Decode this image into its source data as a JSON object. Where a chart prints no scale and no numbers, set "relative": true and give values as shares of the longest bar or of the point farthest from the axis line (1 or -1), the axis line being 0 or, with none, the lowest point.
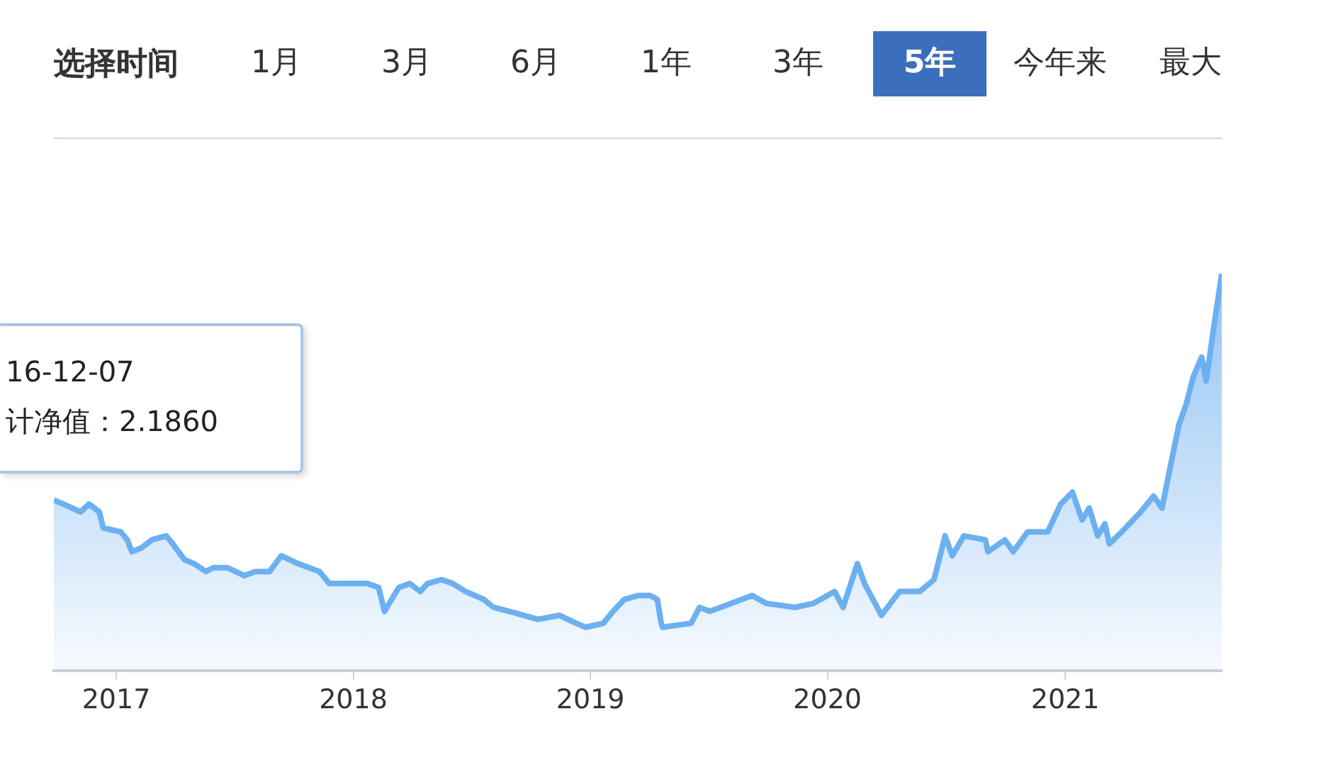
{
  "chart_data": {
    "type": "area",
    "relative": true,
    "annotations": [
      "选择时间",
      "1月",
      "3月",
      "6月",
      "1年",
      "3年",
      "5年",
      "今年来",
      "最大",
      "16-12-07",
      "计净值：2.1860"
    ],
    "x": [
      "2016-09-27",
      "2016-10-12",
      "2016-11-07",
      "2016-11-20",
      "2016-12-06",
      "2016-12-12",
      "2017-01-08",
      "2017-01-18",
      "2017-01-25",
      "2017-02-09",
      "2017-02-25",
      "2017-03-19",
      "2017-03-29",
      "2017-04-16",
      "2017-05-01",
      "2017-05-19",
      "2017-05-30",
      "2017-06-21",
      "2017-07-17",
      "2017-08-03",
      "2017-08-25",
      "2017-09-12",
      "2017-10-08",
      "2017-11-10",
      "2017-11-25",
      "2017-12-23",
      "2018-01-23",
      "2018-02-09",
      "2018-02-18",
      "2018-03-12",
      "2018-03-29",
      "2018-04-14",
      "2018-04-25",
      "2018-05-17",
      "2018-06-03",
      "2018-06-23",
      "2018-07-21",
      "2018-08-05",
      "2018-08-29",
      "2018-09-20",
      "2018-10-12",
      "2018-11-14",
      "2018-12-10",
      "2018-12-25",
      "2019-01-21",
      "2019-02-05",
      "2019-02-22",
      "2019-03-16",
      "2019-04-03",
      "2019-04-14",
      "2019-04-20",
      "2019-04-22",
      "2019-06-05",
      "2019-06-18",
      "2019-07-04",
      "2019-09-07",
      "2019-09-29",
      "2019-11-12",
      "2019-12-10",
      "2020-01-12",
      "2020-01-25",
      "2020-02-16",
      "2020-02-27",
      "2020-03-24",
      "2020-04-21",
      "2020-05-22",
      "2020-06-13",
      "2020-06-30",
      "2020-07-11",
      "2020-07-29",
      "2020-08-31",
      "2020-09-04",
      "2020-09-30",
      "2020-10-13",
      "2020-11-04",
      "2020-12-05",
      "2020-12-25",
      "2021-01-12",
      "2021-01-27",
      "2021-02-07",
      "2021-02-20",
      "2021-03-03",
      "2021-03-10",
      "2021-03-29",
      "2021-04-27",
      "2021-05-17",
      "2021-05-30",
      "2021-06-10",
      "2021-06-25",
      "2021-07-06",
      "2021-07-17",
      "2021-07-30",
      "2021-08-06",
      "2021-08-19",
      "2021-08-30"
    ],
    "series": [
      {
        "color": "#6cb0f0",
        "values": [
          0.43,
          0.42,
          0.4,
          0.42,
          0.4,
          0.36,
          0.35,
          0.33,
          0.3,
          0.31,
          0.33,
          0.34,
          0.32,
          0.28,
          0.27,
          0.25,
          0.26,
          0.26,
          0.24,
          0.25,
          0.25,
          0.29,
          0.27,
          0.25,
          0.22,
          0.22,
          0.22,
          0.21,
          0.15,
          0.21,
          0.22,
          0.2,
          0.22,
          0.23,
          0.22,
          0.2,
          0.18,
          0.16,
          0.15,
          0.14,
          0.13,
          0.14,
          0.12,
          0.11,
          0.12,
          0.15,
          0.18,
          0.19,
          0.19,
          0.18,
          0.12,
          0.11,
          0.12,
          0.16,
          0.15,
          0.19,
          0.17,
          0.16,
          0.17,
          0.2,
          0.16,
          0.27,
          0.22,
          0.14,
          0.2,
          0.2,
          0.23,
          0.34,
          0.29,
          0.34,
          0.33,
          0.3,
          0.33,
          0.3,
          0.35,
          0.35,
          0.42,
          0.45,
          0.38,
          0.41,
          0.34,
          0.37,
          0.32,
          0.35,
          0.4,
          0.44,
          0.41,
          0.5,
          0.62,
          0.67,
          0.74,
          0.79,
          0.73,
          0.88,
          1
        ]
      }
    ],
    "xlim": [
      "2016-09-27",
      "2021-08-30"
    ],
    "xticks": [
      {
        "value": "2017-01-01",
        "label": "2017"
      },
      {
        "value": "2018-01-01",
        "label": "2018"
      },
      {
        "value": "2019-01-01",
        "label": "2019"
      },
      {
        "value": "2020-01-01",
        "label": "2020"
      },
      {
        "value": "2021-01-01",
        "label": "2021"
      }
    ],
    "legend": false,
    "marker": "none",
    "line_style": "solid"
  }
}
